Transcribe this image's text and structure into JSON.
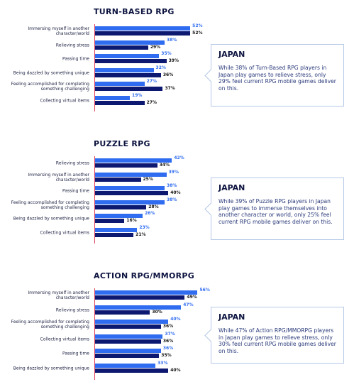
{
  "chart_data": [
    {
      "type": "bar",
      "orientation": "horizontal",
      "title": "TURN-BASED RPG",
      "categories": [
        "Immersing myself in another character/world",
        "Relieving stress",
        "Passing time",
        "Being dazzled by something unique",
        "Feeling accomplished for completing something challenging",
        "Collecting virtual items"
      ],
      "series": [
        {
          "color": "#2f6cf0",
          "values": [
            52,
            38,
            35,
            32,
            27,
            19
          ],
          "value_labels": [
            "52%",
            "38%",
            "35%",
            "32%",
            "27%",
            "19%"
          ]
        },
        {
          "color": "#0d1870",
          "values": [
            52,
            29,
            39,
            36,
            37,
            27
          ],
          "value_labels": [
            "52%",
            "29%",
            "39%",
            "36%",
            "37%",
            "27%"
          ]
        }
      ],
      "annotation": {
        "title": "JAPAN",
        "text": "While 38% of Turn-Based RPG players in Japan play games to relieve stress, only 29% feel current RPG mobile games deliver on this."
      }
    },
    {
      "type": "bar",
      "orientation": "horizontal",
      "title": "PUZZLE RPG",
      "categories": [
        "Relieving stress",
        "Immersing myself in another character/world",
        "Passing time",
        "Feeling accomplished for completing something challenging",
        "Being dazzled by something unique",
        "Collecting virtual items"
      ],
      "series": [
        {
          "color": "#2f6cf0",
          "values": [
            42,
            39,
            38,
            38,
            26,
            23
          ],
          "value_labels": [
            "42%",
            "39%",
            "38%",
            "38%",
            "26%",
            "23%"
          ]
        },
        {
          "color": "#0d1870",
          "values": [
            34,
            25,
            40,
            28,
            16,
            21
          ],
          "value_labels": [
            "34%",
            "25%",
            "40%",
            "28%",
            "16%",
            "21%"
          ]
        }
      ],
      "annotation": {
        "title": "JAPAN",
        "text": "While 39% of Puzzle RPG players in Japan play games to immerse themselves into another character or world, only 25% feel current RPG mobile games deliver on this."
      }
    },
    {
      "type": "bar",
      "orientation": "horizontal",
      "title": "ACTION RPG/MMORPG",
      "categories": [
        "Immersing myself in another character/world",
        "Relieving stress",
        "Feeling accomplished for completing something challenging",
        "Collecting virtual items",
        "Passing time",
        "Being dazzled by something unique"
      ],
      "series": [
        {
          "color": "#2f6cf0",
          "values": [
            56,
            47,
            40,
            37,
            36,
            33
          ],
          "value_labels": [
            "56%",
            "47%",
            "40%",
            "37%",
            "36%",
            "33%"
          ]
        },
        {
          "color": "#0d1870",
          "values": [
            49,
            30,
            36,
            36,
            35,
            40
          ],
          "value_labels": [
            "49%",
            "30%",
            "36%",
            "36%",
            "35%",
            "40%"
          ]
        }
      ],
      "annotation": {
        "title": "JAPAN",
        "text": "While 47% of Action RPG/MMORPG players in Japan play games to relieve stress, only 30% feel current RPG mobile games deliver on this."
      }
    }
  ]
}
